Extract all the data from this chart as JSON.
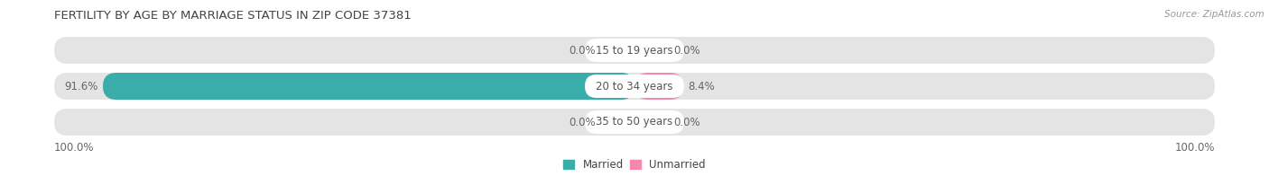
{
  "title": "FERTILITY BY AGE BY MARRIAGE STATUS IN ZIP CODE 37381",
  "source": "Source: ZipAtlas.com",
  "categories": [
    "15 to 19 years",
    "20 to 34 years",
    "35 to 50 years"
  ],
  "married_values": [
    0.0,
    91.6,
    0.0
  ],
  "unmarried_values": [
    0.0,
    8.4,
    0.0
  ],
  "left_labels": [
    "0.0%",
    "91.6%",
    "0.0%"
  ],
  "right_labels": [
    "0.0%",
    "8.4%",
    "0.0%"
  ],
  "bottom_left_label": "100.0%",
  "bottom_right_label": "100.0%",
  "married_color": "#3aacaa",
  "unmarried_color": "#f48aab",
  "bar_bg_color": "#e4e4e4",
  "center_pill_color": "#ffffff",
  "small_married_color": "#8dd5d4",
  "small_unmarried_color": "#f9b8cb",
  "title_fontsize": 9.5,
  "label_fontsize": 8.5,
  "source_fontsize": 7.5,
  "legend_fontsize": 8.5
}
